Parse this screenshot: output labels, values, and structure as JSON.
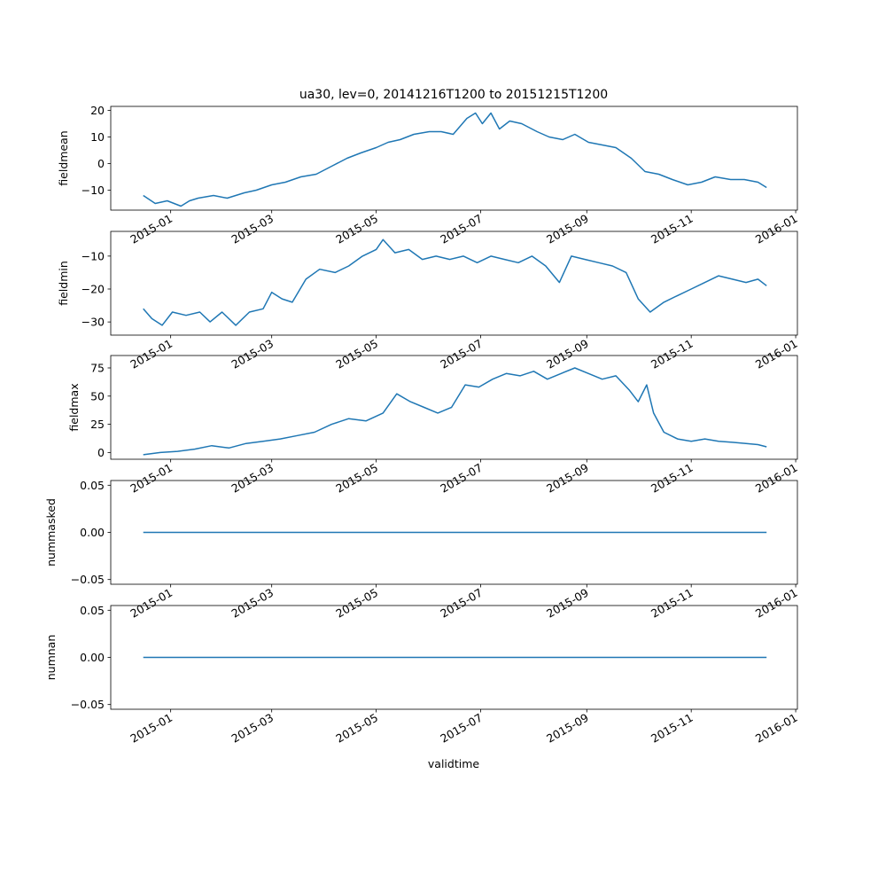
{
  "figure_title": "ua30, lev=0, 20141216T1200 to 20151215T1200",
  "xlabel": "validtime",
  "x_tick_labels": [
    "2015-01",
    "2015-03",
    "2015-05",
    "2015-07",
    "2015-09",
    "2015-11",
    "2016-01"
  ],
  "x_ticks": [
    "2015-01-01",
    "2015-03-01",
    "2015-05-01",
    "2015-07-01",
    "2015-09-01",
    "2015-11-01",
    "2016-01-01"
  ],
  "line_color": "#1f77b4",
  "chart_data": [
    {
      "type": "line",
      "ylabel": "fieldmean",
      "xlim": [
        "2014-11-27",
        "2016-01-02"
      ],
      "ylim": [
        -17.5,
        21.5
      ],
      "yticks": [
        -10,
        0,
        10,
        20
      ],
      "ytick_labels": [
        "−10",
        "0",
        "10",
        "20"
      ],
      "series": [
        {
          "x": [
            "2014-12-16",
            "2014-12-23",
            "2014-12-30",
            "2015-01-07",
            "2015-01-12",
            "2015-01-17",
            "2015-01-26",
            "2015-02-03",
            "2015-02-13",
            "2015-02-20",
            "2015-03-01",
            "2015-03-09",
            "2015-03-18",
            "2015-03-27",
            "2015-04-05",
            "2015-04-14",
            "2015-04-22",
            "2015-05-01",
            "2015-05-08",
            "2015-05-15",
            "2015-05-23",
            "2015-06-01",
            "2015-06-08",
            "2015-06-15",
            "2015-06-23",
            "2015-06-28",
            "2015-07-02",
            "2015-07-07",
            "2015-07-12",
            "2015-07-18",
            "2015-07-25",
            "2015-08-03",
            "2015-08-10",
            "2015-08-18",
            "2015-08-25",
            "2015-09-02",
            "2015-09-10",
            "2015-09-18",
            "2015-09-27",
            "2015-10-05",
            "2015-10-13",
            "2015-10-21",
            "2015-10-30",
            "2015-11-07",
            "2015-11-15",
            "2015-11-24",
            "2015-12-02",
            "2015-12-10",
            "2015-12-15"
          ],
          "y": [
            -12,
            -15,
            -14,
            -16,
            -14,
            -13,
            -12,
            -13,
            -11,
            -10,
            -8,
            -7,
            -5,
            -4,
            -1,
            2,
            4,
            6,
            8,
            9,
            11,
            12,
            12,
            11,
            17,
            19,
            15,
            19,
            13,
            16,
            15,
            12,
            10,
            9,
            11,
            8,
            7,
            6,
            2,
            -3,
            -4,
            -6,
            -8,
            -7,
            -5,
            -6,
            -6,
            -7,
            -9
          ]
        }
      ]
    },
    {
      "type": "line",
      "ylabel": "fieldmin",
      "xlim": [
        "2014-11-27",
        "2016-01-02"
      ],
      "ylim": [
        -34,
        -2.5
      ],
      "yticks": [
        -30,
        -20,
        -10
      ],
      "ytick_labels": [
        "−30",
        "−20",
        "−10"
      ],
      "series": [
        {
          "x": [
            "2014-12-16",
            "2014-12-21",
            "2014-12-27",
            "2015-01-02",
            "2015-01-10",
            "2015-01-18",
            "2015-01-24",
            "2015-01-31",
            "2015-02-08",
            "2015-02-16",
            "2015-02-24",
            "2015-03-01",
            "2015-03-07",
            "2015-03-13",
            "2015-03-21",
            "2015-03-29",
            "2015-04-07",
            "2015-04-15",
            "2015-04-23",
            "2015-05-01",
            "2015-05-05",
            "2015-05-12",
            "2015-05-20",
            "2015-05-28",
            "2015-06-05",
            "2015-06-13",
            "2015-06-21",
            "2015-06-29",
            "2015-07-07",
            "2015-07-15",
            "2015-07-23",
            "2015-07-31",
            "2015-08-08",
            "2015-08-16",
            "2015-08-23",
            "2015-08-31",
            "2015-09-08",
            "2015-09-16",
            "2015-09-24",
            "2015-10-01",
            "2015-10-08",
            "2015-10-16",
            "2015-10-24",
            "2015-11-01",
            "2015-11-09",
            "2015-11-17",
            "2015-11-25",
            "2015-12-03",
            "2015-12-10",
            "2015-12-15"
          ],
          "y": [
            -26,
            -29,
            -31,
            -27,
            -28,
            -27,
            -30,
            -27,
            -31,
            -27,
            -26,
            -21,
            -23,
            -24,
            -17,
            -14,
            -15,
            -13,
            -10,
            -8,
            -5,
            -9,
            -8,
            -11,
            -10,
            -11,
            -10,
            -12,
            -10,
            -11,
            -12,
            -10,
            -13,
            -18,
            -10,
            -11,
            -12,
            -13,
            -15,
            -23,
            -27,
            -24,
            -22,
            -20,
            -18,
            -16,
            -17,
            -18,
            -17,
            -19
          ]
        }
      ]
    },
    {
      "type": "line",
      "ylabel": "fieldmax",
      "xlim": [
        "2014-11-27",
        "2016-01-02"
      ],
      "ylim": [
        -6,
        86
      ],
      "yticks": [
        0,
        25,
        50,
        75
      ],
      "ytick_labels": [
        "0",
        "25",
        "50",
        "75"
      ],
      "series": [
        {
          "x": [
            "2014-12-16",
            "2014-12-26",
            "2015-01-05",
            "2015-01-15",
            "2015-01-25",
            "2015-02-04",
            "2015-02-14",
            "2015-02-24",
            "2015-03-06",
            "2015-03-16",
            "2015-03-26",
            "2015-04-05",
            "2015-04-15",
            "2015-04-25",
            "2015-05-05",
            "2015-05-13",
            "2015-05-21",
            "2015-05-29",
            "2015-06-06",
            "2015-06-14",
            "2015-06-22",
            "2015-06-30",
            "2015-07-08",
            "2015-07-16",
            "2015-07-24",
            "2015-08-01",
            "2015-08-09",
            "2015-08-17",
            "2015-08-25",
            "2015-09-02",
            "2015-09-10",
            "2015-09-18",
            "2015-09-26",
            "2015-10-01",
            "2015-10-06",
            "2015-10-10",
            "2015-10-16",
            "2015-10-24",
            "2015-11-01",
            "2015-11-09",
            "2015-11-17",
            "2015-11-25",
            "2015-12-03",
            "2015-12-10",
            "2015-12-15"
          ],
          "y": [
            -2,
            0,
            1,
            3,
            6,
            4,
            8,
            10,
            12,
            15,
            18,
            25,
            30,
            28,
            35,
            52,
            45,
            40,
            35,
            40,
            60,
            58,
            65,
            70,
            68,
            72,
            65,
            70,
            75,
            70,
            65,
            68,
            55,
            45,
            60,
            35,
            18,
            12,
            10,
            12,
            10,
            9,
            8,
            7,
            5
          ]
        }
      ]
    },
    {
      "type": "line",
      "ylabel": "nummasked",
      "xlim": [
        "2014-11-27",
        "2016-01-02"
      ],
      "ylim": [
        -0.055,
        0.055
      ],
      "yticks": [
        -0.05,
        0,
        0.05
      ],
      "ytick_labels": [
        "−0.05",
        "0.00",
        "0.05"
      ],
      "series": [
        {
          "x": [
            "2014-12-16",
            "2015-12-15"
          ],
          "y": [
            0,
            0
          ]
        }
      ]
    },
    {
      "type": "line",
      "ylabel": "numnan",
      "xlim": [
        "2014-11-27",
        "2016-01-02"
      ],
      "ylim": [
        -0.055,
        0.055
      ],
      "yticks": [
        -0.05,
        0,
        0.05
      ],
      "ytick_labels": [
        "−0.05",
        "0.00",
        "0.05"
      ],
      "series": [
        {
          "x": [
            "2014-12-16",
            "2015-12-15"
          ],
          "y": [
            0,
            0
          ]
        }
      ]
    }
  ]
}
